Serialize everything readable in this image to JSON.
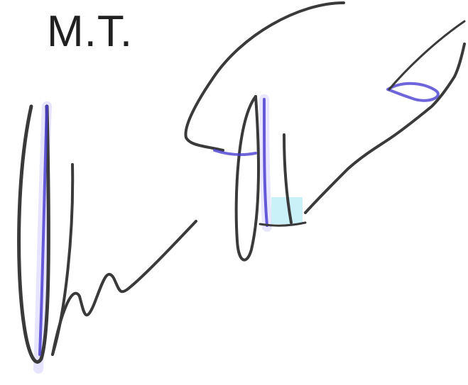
{
  "initials": "M.T.",
  "signature": {
    "ink_color": "#3a3a3a",
    "accent_color": "#4b3fd1"
  }
}
